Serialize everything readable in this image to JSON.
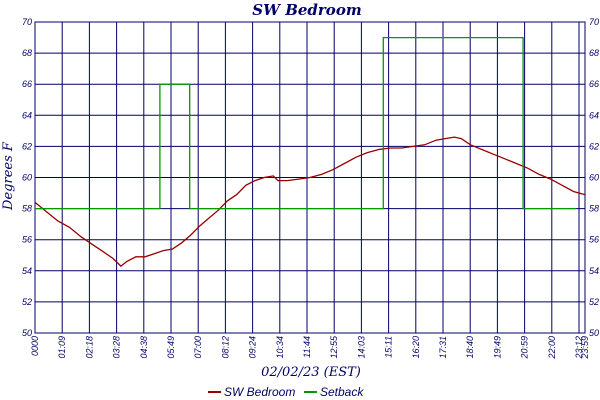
{
  "chart_data": {
    "type": "line",
    "title": "SW Bedroom",
    "xlabel": "02/02/23 (EST)",
    "ylabel": "Degrees F",
    "ylim": [
      50,
      70
    ],
    "yticks": [
      "50",
      "52",
      "54",
      "56",
      "58",
      "60",
      "62",
      "64",
      "66",
      "68",
      "70"
    ],
    "xlim": [
      0,
      24
    ],
    "xtick_labels": [
      "0000",
      "01:09",
      "02:18",
      "03:28",
      "04:38",
      "05:49",
      "07:00",
      "08:12",
      "09:24",
      "10:34",
      "11:44",
      "12:55",
      "14:03",
      "15:11",
      "16:20",
      "17:31",
      "18:40",
      "19:49",
      "20:59",
      "22:00",
      "23:12",
      "23:59"
    ],
    "x_unit": "hours",
    "grid": true,
    "legend_position": "bottom-center",
    "series": [
      {
        "name": "SW Bedroom",
        "color": "#990000",
        "style": "line",
        "x": [
          0,
          0.5,
          1.0,
          1.5,
          2.0,
          2.5,
          3.0,
          3.4,
          3.75,
          4.0,
          4.4,
          4.8,
          5.2,
          5.6,
          6.0,
          6.4,
          6.8,
          7.2,
          7.6,
          8.0,
          8.4,
          8.8,
          9.2,
          9.6,
          10.0,
          10.4,
          10.6,
          11.0,
          11.5,
          12.0,
          12.5,
          13.0,
          13.5,
          14.0,
          14.5,
          15.0,
          15.5,
          16.0,
          16.5,
          17.0,
          17.5,
          17.9,
          18.3,
          18.6,
          19.0,
          19.5,
          20.0,
          20.5,
          21.0,
          21.5,
          22.0,
          22.5,
          23.0,
          23.5,
          23.99
        ],
        "y": [
          58.4,
          57.8,
          57.2,
          56.8,
          56.2,
          55.7,
          55.2,
          54.8,
          54.3,
          54.6,
          54.9,
          54.9,
          55.1,
          55.3,
          55.4,
          55.8,
          56.3,
          56.9,
          57.4,
          57.9,
          58.5,
          58.9,
          59.5,
          59.8,
          60.0,
          60.1,
          59.8,
          59.8,
          59.9,
          60.0,
          60.2,
          60.5,
          60.9,
          61.3,
          61.6,
          61.8,
          61.9,
          61.9,
          62.0,
          62.1,
          62.4,
          62.5,
          62.6,
          62.5,
          62.1,
          61.8,
          61.5,
          61.2,
          60.9,
          60.6,
          60.2,
          59.9,
          59.5,
          59.1,
          58.9
        ]
      },
      {
        "name": "Setback",
        "color": "#009900",
        "style": "step",
        "x": [
          0,
          5.45,
          5.45,
          6.75,
          6.75,
          15.2,
          15.2,
          21.3,
          21.3,
          23.6
        ],
        "y": [
          58,
          58,
          66,
          66,
          58,
          58,
          69,
          69,
          58,
          58
        ]
      }
    ]
  },
  "colors": {
    "axis_text": "#000066",
    "grid": "#000066",
    "background": "#ffffff"
  }
}
